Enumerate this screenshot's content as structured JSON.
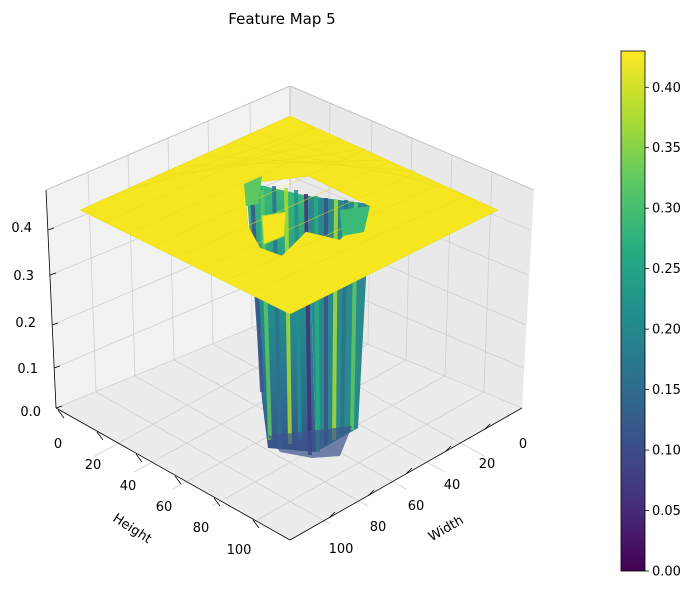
{
  "chart_data": {
    "type": "surface3d",
    "title": "Feature Map 5",
    "xlabel": "Width",
    "ylabel": "Height",
    "zlabel": "",
    "x_ticks": [
      "0",
      "20",
      "40",
      "60",
      "80",
      "100"
    ],
    "y_ticks": [
      "0",
      "20",
      "40",
      "60",
      "80",
      "100"
    ],
    "z_ticks": [
      "0.0",
      "0.1",
      "0.2",
      "0.3",
      "0.4"
    ],
    "xlim": [
      0,
      111
    ],
    "ylim": [
      0,
      111
    ],
    "zlim": [
      0,
      0.43
    ],
    "colorbar": {
      "colormap": "viridis",
      "ticks": [
        "0.00",
        "0.05",
        "0.10",
        "0.15",
        "0.20",
        "0.25",
        "0.30",
        "0.35",
        "0.40"
      ],
      "range": [
        0,
        0.43
      ]
    },
    "surface": {
      "plateau_value": 0.43,
      "hole_region_width": [
        20,
        42
      ],
      "hole_region_height": [
        20,
        42
      ],
      "hole_min_value": 0.0,
      "description_values": "flat plateau at ~0.43 with a deep central well dropping to ~0.0-0.25"
    },
    "grid": true,
    "colors": {
      "plateau": "#f5e61f",
      "pane": "#f2f2f2",
      "grid": "#d0d0d0"
    }
  }
}
